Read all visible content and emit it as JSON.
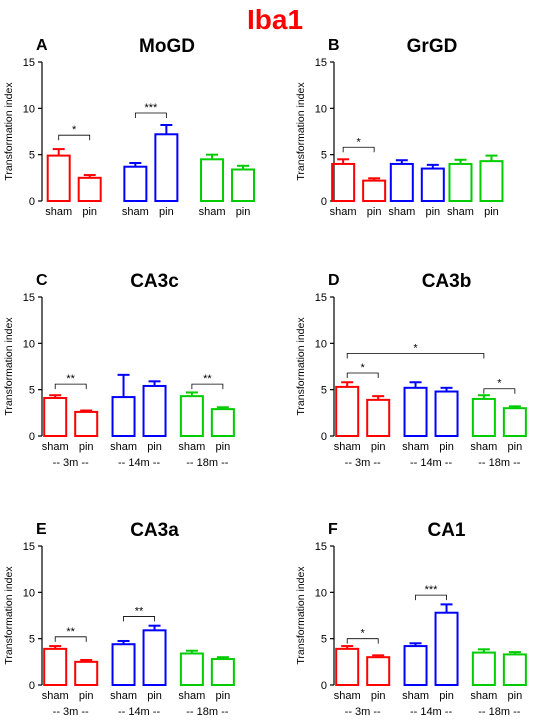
{
  "figure_title": "Iba1",
  "colors": {
    "title": "#ff0000",
    "group_3m": "#ff0000",
    "group_14m": "#0000ff",
    "group_18m": "#00cc00"
  },
  "chart_data": [
    {
      "type": "bar",
      "panel_letter": "A",
      "title": "MoGD",
      "ylabel": "Transformation index",
      "ylim": [
        0,
        15
      ],
      "yticks": [
        0,
        5,
        10,
        15
      ],
      "categories": [
        "sham",
        "pin",
        "sham",
        "pin",
        "sham",
        "pin"
      ],
      "group_labels": [],
      "values": [
        4.9,
        2.5,
        3.7,
        7.2,
        4.5,
        3.4
      ],
      "errors": [
        0.7,
        0.3,
        0.4,
        1.0,
        0.5,
        0.4
      ],
      "significance": [
        {
          "from": 0,
          "to": 1,
          "label": "*",
          "y": 7.1
        },
        {
          "from": 2,
          "to": 3,
          "label": "***",
          "y": 9.5
        }
      ]
    },
    {
      "type": "bar",
      "panel_letter": "B",
      "title": "GrGD",
      "ylabel": "Transformation index",
      "ylim": [
        0,
        15
      ],
      "yticks": [
        0,
        5,
        10,
        15
      ],
      "categories": [
        "sham",
        "pin",
        "sham",
        "pin",
        "sham",
        "pin"
      ],
      "group_labels": [],
      "values": [
        4.0,
        2.2,
        4.0,
        3.5,
        4.0,
        4.3
      ],
      "errors": [
        0.5,
        0.25,
        0.4,
        0.4,
        0.45,
        0.6
      ],
      "significance": [
        {
          "from": 0,
          "to": 1,
          "label": "*",
          "y": 5.8
        }
      ]
    },
    {
      "type": "bar",
      "panel_letter": "C",
      "title": "CA3c",
      "ylabel": "Transformation index",
      "ylim": [
        0,
        15
      ],
      "yticks": [
        0,
        5,
        10,
        15
      ],
      "categories": [
        "sham",
        "pin",
        "sham",
        "pin",
        "sham",
        "pin"
      ],
      "group_labels": [
        "-- 3m --",
        "-- 14m --",
        "-- 18m --"
      ],
      "values": [
        4.1,
        2.6,
        4.2,
        5.4,
        4.3,
        2.9
      ],
      "errors": [
        0.3,
        0.15,
        2.4,
        0.5,
        0.4,
        0.2
      ],
      "significance": [
        {
          "from": 0,
          "to": 1,
          "label": "**",
          "y": 5.6
        },
        {
          "from": 4,
          "to": 5,
          "label": "**",
          "y": 5.6
        }
      ]
    },
    {
      "type": "bar",
      "panel_letter": "D",
      "title": "CA3b",
      "ylabel": "Transformation index",
      "ylim": [
        0,
        15
      ],
      "yticks": [
        0,
        5,
        10,
        15
      ],
      "categories": [
        "sham",
        "pin",
        "sham",
        "pin",
        "sham",
        "pin"
      ],
      "group_labels": [
        "-- 3m --",
        "-- 14m --",
        "-- 18m --"
      ],
      "values": [
        5.3,
        3.9,
        5.2,
        4.8,
        4.0,
        3.0
      ],
      "errors": [
        0.5,
        0.4,
        0.6,
        0.4,
        0.4,
        0.2
      ],
      "significance": [
        {
          "from": 0,
          "to": 1,
          "label": "*",
          "y": 6.8
        },
        {
          "from": 0,
          "to": 4,
          "label": "*",
          "y": 8.9
        },
        {
          "from": 4,
          "to": 5,
          "label": "*",
          "y": 5.1
        }
      ]
    },
    {
      "type": "bar",
      "panel_letter": "E",
      "title": "CA3a",
      "ylabel": "Transformation index",
      "ylim": [
        0,
        15
      ],
      "yticks": [
        0,
        5,
        10,
        15
      ],
      "categories": [
        "sham",
        "pin",
        "sham",
        "pin",
        "sham",
        "pin"
      ],
      "group_labels": [
        "-- 3m --",
        "-- 14m --",
        "-- 18m --"
      ],
      "values": [
        3.9,
        2.5,
        4.4,
        5.9,
        3.4,
        2.8
      ],
      "errors": [
        0.3,
        0.2,
        0.35,
        0.5,
        0.3,
        0.2
      ],
      "significance": [
        {
          "from": 0,
          "to": 1,
          "label": "**",
          "y": 5.2
        },
        {
          "from": 2,
          "to": 3,
          "label": "**",
          "y": 7.4
        }
      ]
    },
    {
      "type": "bar",
      "panel_letter": "F",
      "title": "CA1",
      "ylabel": "Transformation index",
      "ylim": [
        0,
        15
      ],
      "yticks": [
        0,
        5,
        10,
        15
      ],
      "categories": [
        "sham",
        "pin",
        "sham",
        "pin",
        "sham",
        "pin"
      ],
      "group_labels": [
        "-- 3m --",
        "-- 14m --",
        "-- 18m --"
      ],
      "values": [
        3.9,
        3.0,
        4.2,
        7.8,
        3.5,
        3.3
      ],
      "errors": [
        0.3,
        0.2,
        0.3,
        0.9,
        0.35,
        0.25
      ],
      "significance": [
        {
          "from": 0,
          "to": 1,
          "label": "*",
          "y": 5.0
        },
        {
          "from": 2,
          "to": 3,
          "label": "***",
          "y": 9.7
        }
      ]
    }
  ]
}
